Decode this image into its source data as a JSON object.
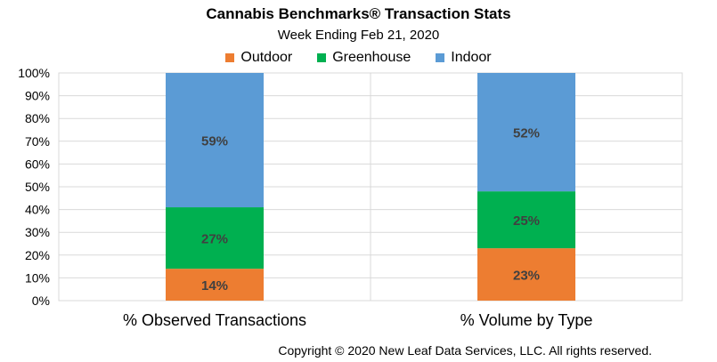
{
  "title": "Cannabis Benchmarks® Transaction Stats",
  "subtitle": "Week Ending Feb 21, 2020",
  "footer": "Copyright © 2020 New Leaf Data Services, LLC. All rights reserved.",
  "chart_data": {
    "type": "bar",
    "stacked": true,
    "title": "Cannabis Benchmarks® Transaction Stats",
    "subtitle": "Week Ending Feb 21, 2020",
    "categories": [
      "% Observed Transactions",
      "% Volume by Type"
    ],
    "series": [
      {
        "name": "Outdoor",
        "color": "#ed7d31",
        "values": [
          14,
          23
        ],
        "labels": [
          "14%",
          "23%"
        ]
      },
      {
        "name": "Greenhouse",
        "color": "#00b050",
        "values": [
          27,
          25
        ],
        "labels": [
          "27%",
          "25%"
        ]
      },
      {
        "name": "Indoor",
        "color": "#5b9bd5",
        "values": [
          59,
          52
        ],
        "labels": [
          "59%",
          "52%"
        ]
      }
    ],
    "ylim": [
      0,
      100
    ],
    "yticks": [
      "0%",
      "10%",
      "20%",
      "30%",
      "40%",
      "50%",
      "60%",
      "70%",
      "80%",
      "90%",
      "100%"
    ],
    "grid": true,
    "legend_position": "top"
  }
}
